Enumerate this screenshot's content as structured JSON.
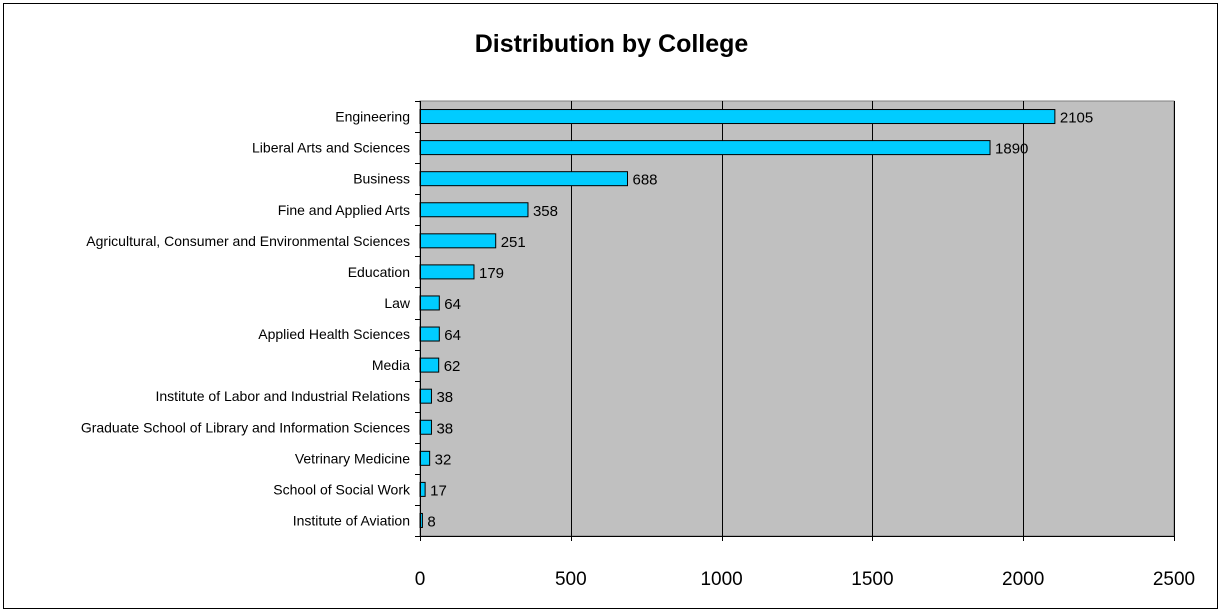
{
  "chart_data": {
    "type": "bar",
    "orientation": "horizontal",
    "title": "Distribution by College",
    "xlabel": "",
    "ylabel": "",
    "categories": [
      "Engineering",
      "Liberal Arts and Sciences",
      "Business",
      "Fine and Applied Arts",
      "Agricultural, Consumer and Environmental Sciences",
      "Education",
      "Law",
      "Applied Health Sciences",
      "Media",
      "Institute of Labor and Industrial Relations",
      "Graduate School of Library and Information Sciences",
      "Vetrinary Medicine",
      "School of Social Work",
      "Institute of Aviation"
    ],
    "values": [
      2105,
      1890,
      688,
      358,
      251,
      179,
      64,
      64,
      62,
      38,
      38,
      32,
      17,
      8
    ],
    "xlim": [
      0,
      2500
    ],
    "xticks": [
      0,
      500,
      1000,
      1500,
      2000,
      2500
    ],
    "grid": "vertical",
    "legend": "none",
    "bar_color": "#00CCFF",
    "plot_background": "#C0C0C0"
  }
}
